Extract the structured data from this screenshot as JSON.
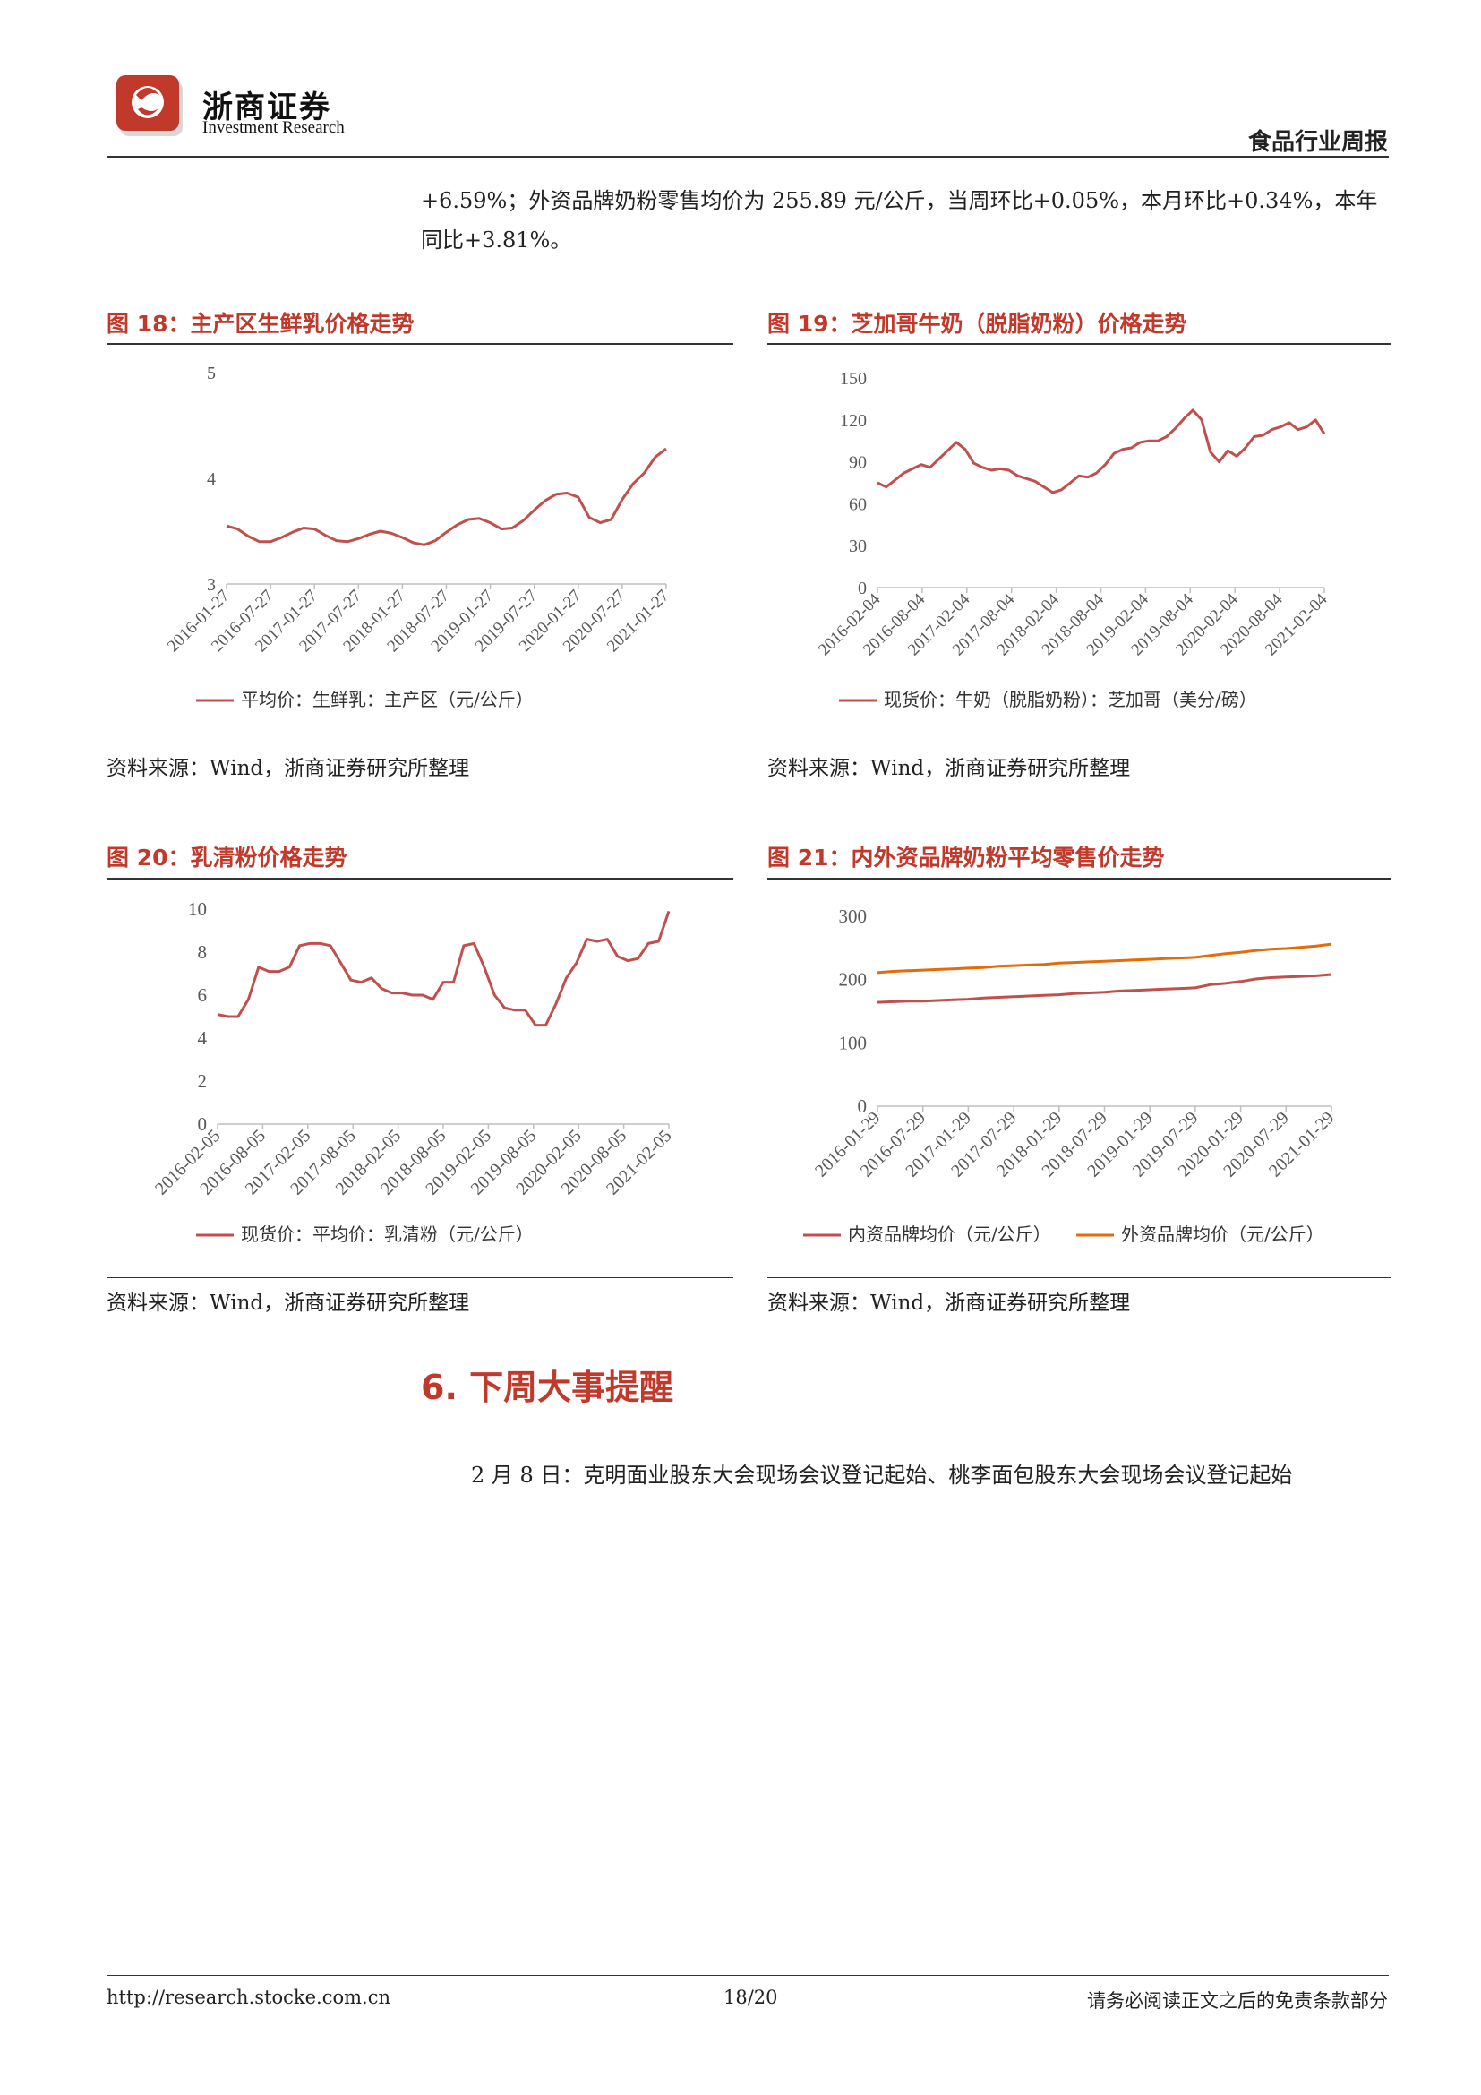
{
  "header": {
    "company_cn": "浙商证券",
    "company_en": "Investment Research",
    "report_type": "食品行业周报"
  },
  "intro_paragraph": "+6.59%；外资品牌奶粉零售均价为 255.89 元/公斤，当周环比+0.05%，本月环比+0.34%，本年同比+3.81%。",
  "colors": {
    "accent": "#c0392b",
    "series_red": "#c0504d",
    "series_orange": "#e36c0a"
  },
  "figures": [
    {
      "title": "图 18：主产区生鲜乳价格走势",
      "source": "资料来源：Wind，浙商证券研究所整理",
      "chart_data": {
        "type": "line",
        "yticks": [
          "5",
          "4",
          "3"
        ],
        "xticks": [
          "2016-01-27",
          "2016-07-27",
          "2017-01-27",
          "2017-07-27",
          "2018-01-27",
          "2018-07-27",
          "2019-01-27",
          "2019-07-27",
          "2020-01-27",
          "2020-07-27",
          "2021-01-27"
        ],
        "ylim": [
          3,
          5
        ],
        "series": [
          {
            "name": "平均价：生鲜乳：主产区（元/公斤）",
            "values": [
              3.55,
              3.52,
              3.45,
              3.4,
              3.4,
              3.44,
              3.49,
              3.53,
              3.52,
              3.46,
              3.41,
              3.4,
              3.43,
              3.47,
              3.5,
              3.48,
              3.44,
              3.39,
              3.37,
              3.41,
              3.49,
              3.56,
              3.61,
              3.62,
              3.58,
              3.52,
              3.53,
              3.6,
              3.7,
              3.79,
              3.85,
              3.86,
              3.82,
              3.63,
              3.58,
              3.61,
              3.8,
              3.95,
              4.05,
              4.2,
              4.28
            ]
          }
        ]
      }
    },
    {
      "title": "图 19：芝加哥牛奶（脱脂奶粉）价格走势",
      "source": "资料来源：Wind，浙商证券研究所整理",
      "chart_data": {
        "type": "line",
        "yticks": [
          "150",
          "120",
          "90",
          "60",
          "30",
          "0"
        ],
        "xticks": [
          "2016-02-04",
          "2016-08-04",
          "2017-02-04",
          "2017-08-04",
          "2018-02-04",
          "2018-08-04",
          "2019-02-04",
          "2019-08-04",
          "2020-02-04",
          "2020-08-04",
          "2021-02-04"
        ],
        "ylim": [
          0,
          150
        ],
        "series": [
          {
            "name": "现货价：牛奶（脱脂奶粉）：芝加哥（美分/磅）",
            "values": [
              75,
              72,
              77,
              82,
              85,
              88,
              86,
              92,
              98,
              104,
              99,
              89,
              86,
              84,
              85,
              84,
              80,
              78,
              76,
              72,
              68,
              70,
              75,
              80,
              79,
              82,
              88,
              96,
              99,
              100,
              104,
              105,
              105,
              108,
              114,
              121,
              127,
              120,
              97,
              90,
              98,
              94,
              100,
              108,
              109,
              113,
              115,
              118,
              113,
              115,
              120,
              110
            ]
          }
        ]
      }
    },
    {
      "title": "图 20：乳清粉价格走势",
      "source": "资料来源：Wind，浙商证券研究所整理",
      "chart_data": {
        "type": "line",
        "yticks": [
          "10",
          "8",
          "6",
          "4",
          "2",
          "0"
        ],
        "xticks": [
          "2016-02-05",
          "2016-08-05",
          "2017-02-05",
          "2017-08-05",
          "2018-02-05",
          "2018-08-05",
          "2019-02-05",
          "2019-08-05",
          "2020-02-05",
          "2020-08-05",
          "2021-02-05"
        ],
        "ylim": [
          0,
          10
        ],
        "series": [
          {
            "name": "现货价：平均价：乳清粉（元/公斤）",
            "values": [
              5.1,
              5.0,
              5.0,
              5.8,
              7.3,
              7.1,
              7.1,
              7.3,
              8.3,
              8.4,
              8.4,
              8.3,
              7.5,
              6.7,
              6.6,
              6.8,
              6.3,
              6.1,
              6.1,
              6.0,
              6.0,
              5.8,
              6.6,
              6.6,
              8.3,
              8.4,
              7.3,
              6.0,
              5.4,
              5.3,
              5.3,
              4.6,
              4.6,
              5.6,
              6.8,
              7.5,
              8.6,
              8.5,
              8.6,
              7.8,
              7.6,
              7.7,
              8.4,
              8.5,
              9.9
            ]
          }
        ]
      }
    },
    {
      "title": "图 21：内外资品牌奶粉平均零售价走势",
      "source": "资料来源：Wind，浙商证券研究所整理",
      "chart_data": {
        "type": "line",
        "yticks": [
          "300",
          "200",
          "100",
          "0"
        ],
        "xticks": [
          "2016-01-29",
          "2016-07-29",
          "2017-01-29",
          "2017-07-29",
          "2018-01-29",
          "2018-07-29",
          "2019-01-29",
          "2019-07-29",
          "2020-01-29",
          "2020-07-29",
          "2021-01-29"
        ],
        "ylim": [
          0,
          300
        ],
        "series": [
          {
            "name": "内资品牌均价（元/公斤）",
            "color": "#c0504d",
            "values": [
              164,
              165,
              166,
              166,
              167,
              168,
              169,
              171,
              172,
              173,
              174,
              175,
              176,
              178,
              179,
              180,
              182,
              183,
              184,
              185,
              186,
              187,
              192,
              194,
              197,
              201,
              203,
              204,
              205,
              206,
              208
            ]
          },
          {
            "name": "外资品牌均价（元/公斤）",
            "color": "#e36c0a",
            "values": [
              211,
              213,
              214,
              215,
              216,
              217,
              218,
              219,
              221,
              222,
              223,
              224,
              226,
              227,
              228,
              229,
              230,
              231,
              232,
              233,
              234,
              235,
              238,
              241,
              243,
              246,
              248,
              249,
              251,
              253,
              256
            ]
          }
        ]
      }
    }
  ],
  "section": {
    "title": "6. 下周大事提醒",
    "event": "2 月 8 日：克明面业股东大会现场会议登记起始、桃李面包股东大会现场会议登记起始"
  },
  "footer": {
    "url": "http://research.stocke.com.cn",
    "page": "18/20",
    "disclaimer": "请务必阅读正文之后的免责条款部分"
  }
}
